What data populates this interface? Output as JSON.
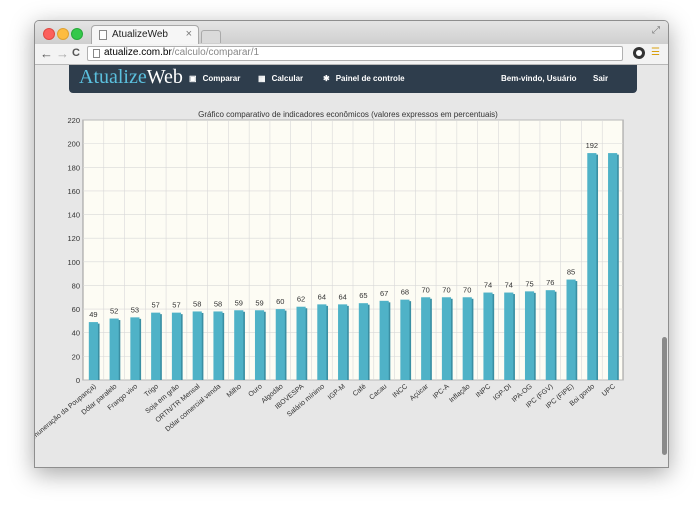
{
  "browser": {
    "tab_title": "AtualizeWeb",
    "tab_close": "×",
    "url_host": "atualize.com.br",
    "url_path": "/calculo/comparar/1",
    "back": "←",
    "forward": "→",
    "reload": "C"
  },
  "navbar": {
    "brand_a": "Atualize",
    "brand_b": "Web",
    "items": [
      {
        "label": "Comparar",
        "icon": "image-icon"
      },
      {
        "label": "Calcular",
        "icon": "grid-icon"
      },
      {
        "label": "Painel de controle",
        "icon": "gear-icon"
      }
    ],
    "welcome": "Bem-vindo, Usuário",
    "logout": "Sair"
  },
  "colors": {
    "bar": "#4fb2c7",
    "bar_side": "#3a8fa3",
    "plot_bg": "#fdfcf4",
    "grid": "#d8d8d8",
    "navbar": "#2e3d4c"
  },
  "chart_data": {
    "type": "bar",
    "title": "Gráfico comparativo de indicadores econômicos (valores expressos em percentuais)",
    "categories": [
      "IRP (Índice de Remuneração da Poupança)",
      "Dólar paralelo",
      "Frango vivo",
      "Trigo",
      "Soja em grão",
      "ORTN/TR Mensal",
      "Dólar comercial venda",
      "Milho",
      "Ouro",
      "Algodão",
      "IBOVESPA",
      "Salário mínimo",
      "IGP-M",
      "Café",
      "Cacau",
      "INCC",
      "Açúcar",
      "IPC-A",
      "Inflação",
      "INPC",
      "IGP-DI",
      "IPA-OG",
      "IPC (FGV)",
      "IPC (FIPE)",
      "Boi gordo",
      "UPC"
    ],
    "values": [
      49,
      52,
      53,
      57,
      57,
      58,
      58,
      59,
      59,
      60,
      62,
      64,
      64,
      65,
      67,
      68,
      70,
      70,
      70,
      74,
      74,
      75,
      76,
      85,
      192,
      192
    ],
    "data_labels": [
      "49",
      "52",
      "53",
      "57",
      "57",
      "58",
      "58",
      "59",
      "59",
      "60",
      "62",
      "64",
      "64",
      "65",
      "67",
      "68",
      "70",
      "70",
      "70",
      "74",
      "74",
      "75",
      "76",
      "85",
      "192",
      ""
    ],
    "y_ticks": [
      "0",
      "20",
      "40",
      "60",
      "80",
      "100",
      "120",
      "140",
      "160",
      "180",
      "200",
      "220"
    ],
    "ylim": [
      0,
      220
    ],
    "grid": true
  }
}
